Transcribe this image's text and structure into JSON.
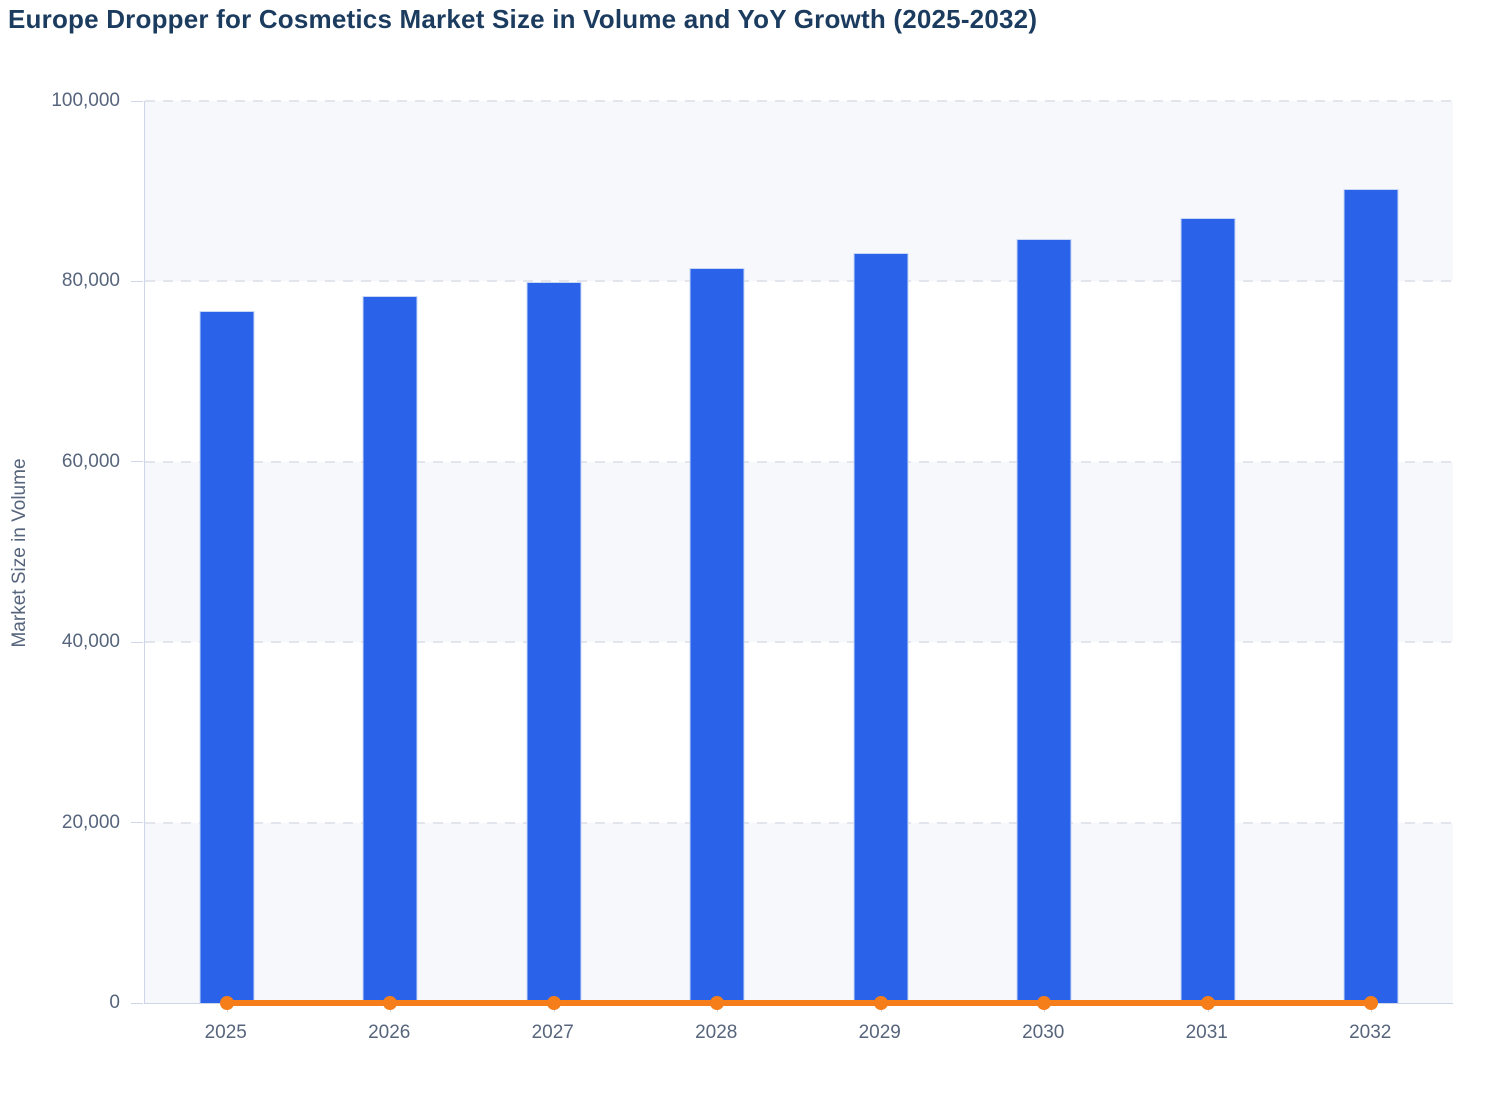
{
  "title": "Europe Dropper for Cosmetics Market Size in Volume and YoY Growth (2025-2032)",
  "y_axis": {
    "label": "Market Size in Volume",
    "tick_labels_top_to_bottom": [
      "100,000",
      "80,000",
      "60,000",
      "40,000",
      "20,000",
      "0"
    ]
  },
  "x_axis": {
    "categories": [
      "2025",
      "2026",
      "2027",
      "2028",
      "2029",
      "2030",
      "2031",
      "2032"
    ]
  },
  "chart_data": {
    "type": "bar",
    "categories": [
      "2025",
      "2026",
      "2027",
      "2028",
      "2029",
      "2030",
      "2031",
      "2032"
    ],
    "series": [
      {
        "name": "Market Size in Volume",
        "type": "bar",
        "color": "#2a63e9",
        "values": [
          76700,
          78400,
          79900,
          81500,
          83100,
          84700,
          87000,
          90300
        ]
      },
      {
        "name": "YoY Growth",
        "type": "line",
        "color": "#f57d1a",
        "values": [
          0,
          0,
          0,
          0,
          0,
          0,
          0,
          0
        ],
        "plotted_on_baseline": true,
        "marker": "circle"
      }
    ],
    "title": "Europe Dropper for Cosmetics Market Size in Volume and YoY Growth (2025-2032)",
    "xlabel": "",
    "ylabel": "Market Size in Volume",
    "ylim": [
      0,
      100000
    ],
    "y_tick_step": 20000,
    "grid": "horizontal dashed",
    "legend": "none",
    "plot_bands": "alternating horizontal bands between gridlines, light band at top"
  },
  "colors": {
    "bar_blue": "#2a63e9",
    "bar_edge": "#c8d7f6",
    "line_orange": "#f57d1a",
    "title_text": "#1c3c5f",
    "axis_text": "#57657c",
    "gridline": "#e2e5eb",
    "axis_line": "#ccd6e6",
    "band_light": "#f7f8fb",
    "band_white": "#ffffff",
    "background": "#ffffff"
  }
}
